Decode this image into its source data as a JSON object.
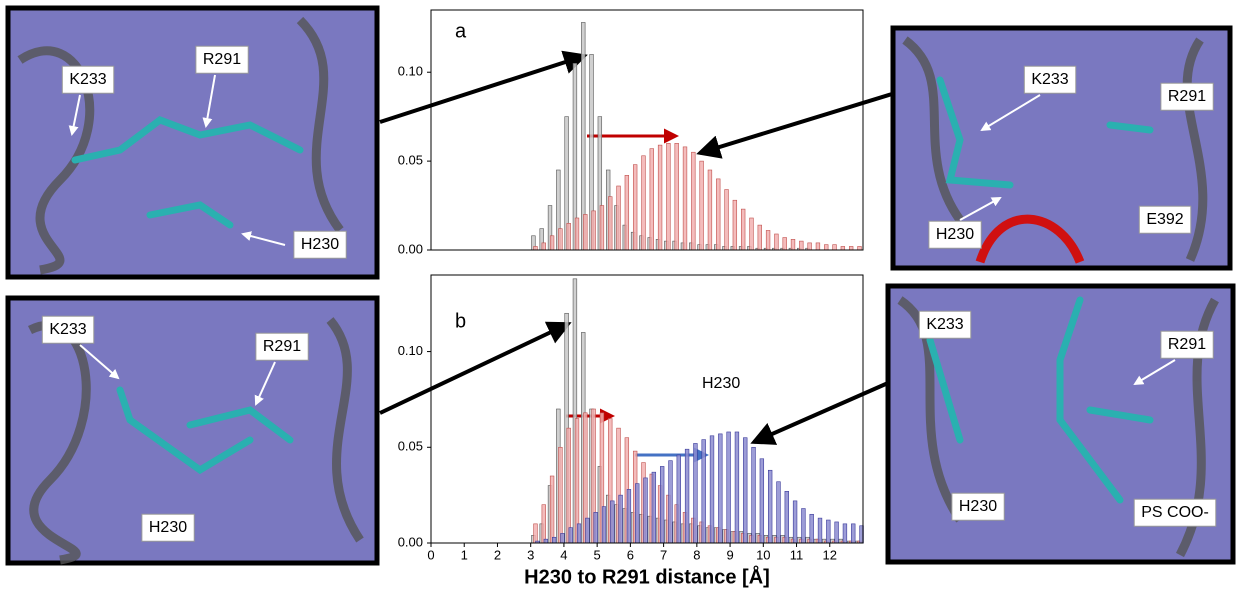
{
  "chart_data": [
    {
      "type": "histogram",
      "annotations": [
        "a"
      ],
      "bins": [
        3.0,
        3.25,
        3.5,
        3.75,
        4.0,
        4.25,
        4.5,
        4.75,
        5.0,
        5.25,
        5.5,
        5.75,
        6.0,
        6.25,
        6.5,
        6.75,
        7.0,
        7.25,
        7.5,
        7.75,
        8.0,
        8.25,
        8.5,
        8.75,
        9.0,
        9.25,
        9.5,
        9.75,
        10.0,
        10.25,
        10.5,
        10.75,
        11.0,
        11.25,
        11.5,
        11.75,
        12.0,
        12.25,
        12.5,
        12.75,
        13.0
      ],
      "series": [
        {
          "color": "#c8c8c8",
          "values": [
            0.008,
            0.012,
            0.025,
            0.045,
            0.075,
            0.105,
            0.128,
            0.11,
            0.075,
            0.045,
            0.025,
            0.014,
            0.01,
            0.008,
            0.007,
            0.006,
            0.005,
            0.005,
            0.004,
            0.004,
            0.003,
            0.003,
            0.003,
            0.002,
            0.002,
            0.002,
            0.002,
            0.001,
            0.001,
            0.001,
            0.001,
            0.001,
            0.001,
            0.001,
            0,
            0,
            0,
            0,
            0,
            0
          ]
        },
        {
          "color": "#f2b0b0",
          "values": [
            0.002,
            0.004,
            0.008,
            0.012,
            0.015,
            0.018,
            0.02,
            0.022,
            0.025,
            0.03,
            0.036,
            0.042,
            0.048,
            0.053,
            0.057,
            0.059,
            0.06,
            0.06,
            0.058,
            0.055,
            0.05,
            0.045,
            0.04,
            0.034,
            0.028,
            0.023,
            0.018,
            0.014,
            0.011,
            0.009,
            0.007,
            0.006,
            0.005,
            0.004,
            0.004,
            0.003,
            0.003,
            0.002,
            0.002,
            0.002
          ]
        }
      ],
      "xlim": [
        0,
        13
      ],
      "ylim": [
        0,
        0.135
      ],
      "yticks": [
        {
          "value": 0,
          "label": "0.00"
        },
        0.05,
        {
          "value": 0.1,
          "label": "0.10"
        }
      ]
    },
    {
      "type": "histogram",
      "annotations": [
        "b",
        "H230"
      ],
      "xlabel": "H230 to R291 distance [Å]",
      "bins": [
        3.0,
        3.25,
        3.5,
        3.75,
        4.0,
        4.25,
        4.5,
        4.75,
        5.0,
        5.25,
        5.5,
        5.75,
        6.0,
        6.25,
        6.5,
        6.75,
        7.0,
        7.25,
        7.5,
        7.75,
        8.0,
        8.25,
        8.5,
        8.75,
        9.0,
        9.25,
        9.5,
        9.75,
        10.0,
        10.25,
        10.5,
        10.75,
        11.0,
        11.25,
        11.5,
        11.75,
        12.0,
        12.25,
        12.5,
        12.75,
        13.0
      ],
      "series": [
        {
          "color": "#c8c8c8",
          "values": [
            0.004,
            0.01,
            0.03,
            0.07,
            0.12,
            0.138,
            0.11,
            0.07,
            0.04,
            0.025,
            0.02,
            0.018,
            0.016,
            0.015,
            0.014,
            0.013,
            0.012,
            0.011,
            0.01,
            0.01,
            0.009,
            0.008,
            0.008,
            0.007,
            0.006,
            0.006,
            0.005,
            0.005,
            0.004,
            0.004,
            0.004,
            0.003,
            0.003,
            0.003,
            0.002,
            0.002,
            0.002,
            0.002,
            0.001,
            0.001
          ]
        },
        {
          "color": "#f2b0b0",
          "values": [
            0.01,
            0.02,
            0.035,
            0.05,
            0.06,
            0.065,
            0.068,
            0.07,
            0.068,
            0.065,
            0.06,
            0.055,
            0.048,
            0.042,
            0.036,
            0.03,
            0.025,
            0.02,
            0.016,
            0.013,
            0.011,
            0.009,
            0.008,
            0.007,
            0.006,
            0.005,
            0.004,
            0.004,
            0.003,
            0.003,
            0.003,
            0.002,
            0.002,
            0.002,
            0.002,
            0.001,
            0.001,
            0.001,
            0.001,
            0.001
          ]
        },
        {
          "color": "#8c8cd0",
          "values": [
            0.001,
            0.002,
            0.003,
            0.005,
            0.008,
            0.01,
            0.013,
            0.016,
            0.019,
            0.022,
            0.025,
            0.028,
            0.031,
            0.034,
            0.037,
            0.04,
            0.043,
            0.046,
            0.049,
            0.052,
            0.054,
            0.056,
            0.057,
            0.058,
            0.058,
            0.055,
            0.05,
            0.044,
            0.038,
            0.032,
            0.027,
            0.022,
            0.018,
            0.015,
            0.013,
            0.012,
            0.011,
            0.01,
            0.01,
            0.009
          ]
        }
      ],
      "xlim": [
        0,
        13
      ],
      "ylim": [
        0,
        0.14
      ],
      "xticks": [
        0,
        1,
        2,
        3,
        4,
        5,
        6,
        7,
        8,
        9,
        10,
        11,
        12
      ],
      "yticks": [
        {
          "value": 0,
          "label": "0.00"
        },
        0.05,
        {
          "value": 0.1,
          "label": "0.10"
        }
      ]
    }
  ],
  "panels": [
    {
      "labels": [
        "K233",
        "R291",
        "H230"
      ]
    },
    {
      "labels": [
        "K233",
        "R291",
        "H230"
      ]
    },
    {
      "labels": [
        "K233",
        "R291",
        "H230",
        "E392"
      ]
    },
    {
      "labels": [
        "K233",
        "R291",
        "H230",
        "PS COO-"
      ]
    }
  ]
}
